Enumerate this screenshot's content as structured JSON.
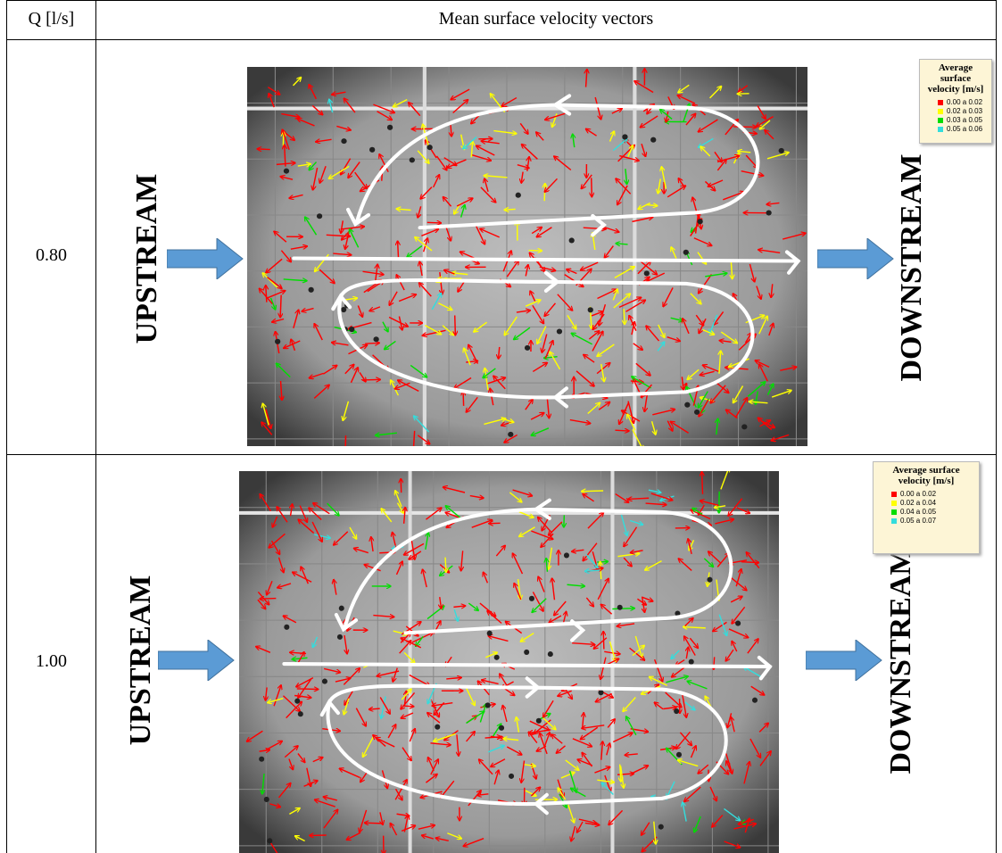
{
  "table": {
    "header": [
      "Q [l/s]",
      "Mean surface velocity vectors"
    ],
    "rows": [
      {
        "q": "0.80",
        "upstream": "UPSTREAM",
        "downstream": "DOWNSTREAM",
        "legend": {
          "title": "Average surface velocity [m/s]",
          "items": [
            {
              "label": "0.00 a 0.02",
              "color": "#ff0000"
            },
            {
              "label": "0.02 a 0.03",
              "color": "#ffff00"
            },
            {
              "label": "0.03 a 0.05",
              "color": "#00dd00"
            },
            {
              "label": "0.05 a 0.06",
              "color": "#33dddd"
            }
          ]
        }
      },
      {
        "q": "1.00",
        "upstream": "UPSTREAM",
        "downstream": "DOWNSTREAM",
        "legend": {
          "title": "Average surface velocity [m/s]",
          "items": [
            {
              "label": "0.00 a 0.02",
              "color": "#ff0000"
            },
            {
              "label": "0.02 a 0.04",
              "color": "#ffff00"
            },
            {
              "label": "0.04 a 0.05",
              "color": "#00dd00"
            },
            {
              "label": "0.05 a 0.07",
              "color": "#33dddd"
            }
          ]
        }
      }
    ]
  }
}
